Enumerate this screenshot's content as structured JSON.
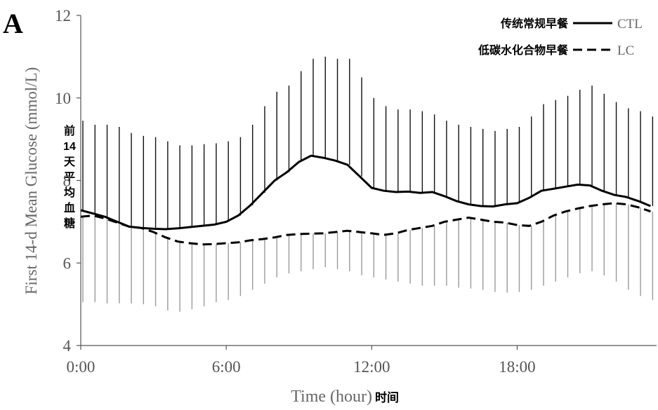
{
  "panel_label": "A",
  "colors": {
    "ctl": "#000000",
    "lc": "#000000",
    "ctl_error": "#111111",
    "lc_error": "#9a9a9a",
    "axis": "#444444",
    "tick_text": "#444444"
  },
  "chart_data": {
    "type": "line",
    "xlabel": "Time (hour)",
    "xlabel_cn": "时间",
    "ylabel": "First 14-d Mean Glucose (mmol/L)",
    "ylabel_cn": [
      "前",
      "14",
      "天",
      "平",
      "均",
      "血",
      "糖"
    ],
    "ylim": [
      4,
      12
    ],
    "yticks": [
      4,
      6,
      8,
      10,
      12
    ],
    "xlim": [
      0,
      23.75
    ],
    "xticks": [
      0,
      6,
      12,
      18
    ],
    "xtick_labels": [
      "0:00",
      "6:00",
      "12:00",
      "18:00"
    ],
    "grid": false,
    "legend_position": "top-right",
    "x": [
      0,
      0.5,
      1,
      1.5,
      2,
      2.5,
      3,
      3.5,
      4,
      4.5,
      5,
      5.5,
      6,
      6.5,
      7,
      7.5,
      8,
      8.5,
      9,
      9.5,
      10,
      10.5,
      11,
      11.5,
      12,
      12.5,
      13,
      13.5,
      14,
      14.5,
      15,
      15.5,
      16,
      16.5,
      17,
      17.5,
      18,
      18.5,
      19,
      19.5,
      20,
      20.5,
      21,
      21.5,
      22,
      22.5,
      23,
      23.5
    ],
    "series": [
      {
        "name": "CTL",
        "legend_cn": "传统常规早餐",
        "style": "solid",
        "values": [
          7.28,
          7.2,
          7.12,
          7.0,
          6.88,
          6.85,
          6.83,
          6.82,
          6.84,
          6.87,
          6.9,
          6.93,
          7.0,
          7.15,
          7.4,
          7.7,
          8.0,
          8.2,
          8.45,
          8.6,
          8.55,
          8.48,
          8.38,
          8.1,
          7.82,
          7.75,
          7.72,
          7.73,
          7.7,
          7.72,
          7.62,
          7.5,
          7.42,
          7.38,
          7.37,
          7.42,
          7.45,
          7.58,
          7.75,
          7.8,
          7.85,
          7.9,
          7.88,
          7.75,
          7.65,
          7.6,
          7.5,
          7.38
        ],
        "upper": [
          9.45,
          9.35,
          9.35,
          9.3,
          9.15,
          9.08,
          9.05,
          8.95,
          8.85,
          8.85,
          8.88,
          8.9,
          8.95,
          9.05,
          9.35,
          9.8,
          10.15,
          10.3,
          10.65,
          10.95,
          11.0,
          10.95,
          10.95,
          10.5,
          10.0,
          9.8,
          9.72,
          9.72,
          9.68,
          9.6,
          9.45,
          9.35,
          9.3,
          9.25,
          9.2,
          9.25,
          9.3,
          9.55,
          9.85,
          9.95,
          10.05,
          10.2,
          10.3,
          10.1,
          9.9,
          9.75,
          9.68,
          9.55
        ],
        "lower": [
          5.05,
          5.05,
          5.02,
          5.02,
          5.02,
          5.0,
          4.95,
          4.85,
          4.82,
          4.88,
          4.95,
          5.05,
          5.1,
          5.2,
          5.35,
          5.5,
          5.65,
          5.75,
          5.8,
          5.85,
          5.9,
          5.85,
          5.8,
          5.7,
          5.65,
          5.6,
          5.55,
          5.5,
          5.45,
          5.45,
          5.45,
          5.4,
          5.38,
          5.35,
          5.3,
          5.28,
          5.3,
          5.35,
          5.45,
          5.55,
          5.65,
          5.75,
          5.8,
          5.7,
          5.55,
          5.35,
          5.2,
          5.1
        ]
      },
      {
        "name": "LC",
        "legend_cn": "低碳水化合物早餐",
        "style": "dashed",
        "values": [
          7.12,
          7.15,
          7.08,
          6.98,
          6.88,
          6.85,
          6.75,
          6.62,
          6.52,
          6.48,
          6.45,
          6.46,
          6.48,
          6.5,
          6.55,
          6.58,
          6.62,
          6.68,
          6.7,
          6.71,
          6.72,
          6.75,
          6.78,
          6.75,
          6.72,
          6.68,
          6.72,
          6.8,
          6.85,
          6.9,
          7.0,
          7.05,
          7.1,
          7.05,
          7.0,
          6.98,
          6.92,
          6.9,
          7.0,
          7.15,
          7.25,
          7.32,
          7.38,
          7.42,
          7.45,
          7.42,
          7.35,
          7.25
        ],
        "upper": [],
        "lower": []
      }
    ]
  }
}
